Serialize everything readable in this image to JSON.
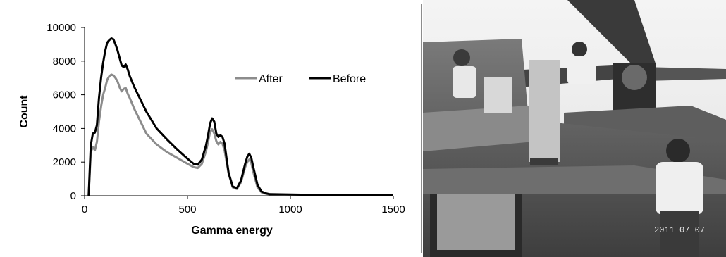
{
  "chart_data": {
    "type": "line",
    "xlabel": "Gamma energy",
    "ylabel": "Count",
    "xlim": [
      0,
      1500
    ],
    "ylim": [
      0,
      10000
    ],
    "xticks": [
      0,
      500,
      1000,
      1500
    ],
    "yticks": [
      0,
      2000,
      4000,
      6000,
      8000,
      10000
    ],
    "grid": false,
    "legend_position": "top-right",
    "series": [
      {
        "name": "After",
        "color": "#8c8c8c",
        "x": [
          20,
          30,
          40,
          50,
          60,
          70,
          80,
          90,
          100,
          110,
          120,
          130,
          140,
          150,
          160,
          170,
          180,
          190,
          200,
          210,
          220,
          230,
          240,
          260,
          280,
          300,
          350,
          400,
          450,
          500,
          530,
          550,
          570,
          590,
          600,
          610,
          620,
          630,
          640,
          650,
          660,
          670,
          680,
          690,
          700,
          720,
          740,
          760,
          780,
          790,
          800,
          810,
          820,
          840,
          860,
          880,
          900,
          1000,
          1100,
          1200,
          1300,
          1400,
          1500
        ],
        "y": [
          0,
          2600,
          2900,
          2700,
          3200,
          4400,
          5300,
          6000,
          6400,
          6900,
          7100,
          7200,
          7150,
          7000,
          6800,
          6450,
          6200,
          6350,
          6400,
          6050,
          5800,
          5500,
          5200,
          4700,
          4200,
          3700,
          3050,
          2600,
          2250,
          1900,
          1700,
          1650,
          1900,
          2650,
          3200,
          3800,
          3950,
          3700,
          3250,
          3050,
          3200,
          3100,
          2700,
          2000,
          1300,
          500,
          400,
          800,
          1700,
          2000,
          2150,
          1950,
          1400,
          500,
          200,
          120,
          80,
          60,
          50,
          40,
          30,
          25,
          20
        ]
      },
      {
        "name": "Before",
        "color": "#000000",
        "x": [
          20,
          30,
          40,
          50,
          60,
          70,
          80,
          90,
          100,
          110,
          120,
          130,
          140,
          150,
          160,
          170,
          180,
          190,
          200,
          210,
          220,
          230,
          240,
          260,
          280,
          300,
          350,
          400,
          450,
          500,
          530,
          550,
          570,
          590,
          600,
          610,
          620,
          630,
          640,
          650,
          660,
          670,
          680,
          690,
          700,
          720,
          740,
          760,
          780,
          790,
          800,
          810,
          820,
          840,
          860,
          880,
          900,
          1000,
          1100,
          1200,
          1300,
          1400,
          1500
        ],
        "y": [
          0,
          3000,
          3700,
          3750,
          4200,
          5800,
          7000,
          7900,
          8600,
          9100,
          9250,
          9350,
          9300,
          9000,
          8650,
          8200,
          7750,
          7650,
          7800,
          7500,
          7100,
          6800,
          6500,
          6000,
          5500,
          5000,
          4000,
          3350,
          2750,
          2200,
          1900,
          1850,
          2150,
          3000,
          3600,
          4300,
          4600,
          4400,
          3700,
          3500,
          3600,
          3500,
          3100,
          2200,
          1350,
          550,
          450,
          900,
          1900,
          2300,
          2500,
          2250,
          1700,
          650,
          250,
          150,
          90,
          70,
          55,
          45,
          35,
          25,
          20
        ]
      }
    ]
  },
  "photo": {
    "date_stamp": "2011 07 07"
  }
}
